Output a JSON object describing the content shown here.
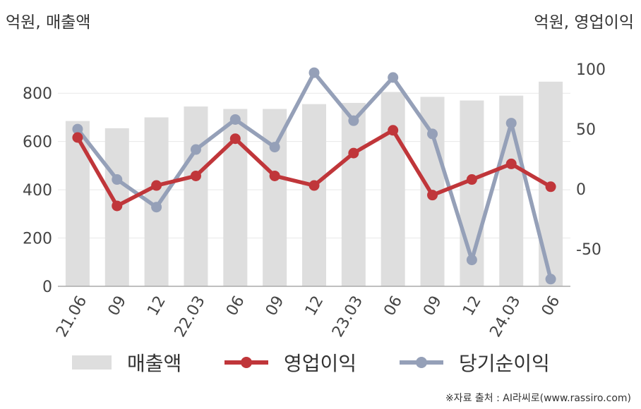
{
  "unit_left": "억원, 매출액",
  "unit_right": "억원, 영업이익",
  "source": "※자료 출처 : AI라씨로(www.rassiro.com)",
  "colors": {
    "bar": "#dedede",
    "op": "#c0363a",
    "net": "#95a0b8",
    "axis": "#aaaaaa",
    "grid": "#e8e8e8"
  },
  "legend": [
    {
      "label": "매출액",
      "kind": "bar",
      "color": "#dedede"
    },
    {
      "label": "영업이익",
      "kind": "line",
      "color": "#c0363a"
    },
    {
      "label": "당기순이익",
      "kind": "line",
      "color": "#95a0b8"
    }
  ],
  "chart_data": {
    "type": "bar+line",
    "categories": [
      "21.06",
      "09",
      "12",
      "22.03",
      "06",
      "09",
      "12",
      "23.03",
      "06",
      "09",
      "12",
      "24.03",
      "06"
    ],
    "left_axis": {
      "ylim": [
        0,
        900
      ],
      "ticks": [
        0,
        200,
        400,
        600,
        800
      ]
    },
    "right_axis": {
      "ylim": [
        -81,
        100
      ],
      "ticks": [
        -50,
        0,
        50,
        100
      ]
    },
    "series": [
      {
        "name": "매출액",
        "type": "bar",
        "axis": "left",
        "values": [
          685,
          655,
          700,
          745,
          735,
          735,
          755,
          760,
          805,
          785,
          770,
          790,
          848
        ]
      },
      {
        "name": "영업이익",
        "type": "line",
        "axis": "right",
        "values": [
          43,
          -14,
          3,
          11,
          42,
          11,
          3,
          30,
          49,
          -5,
          8,
          21,
          2
        ]
      },
      {
        "name": "당기순이익",
        "type": "line",
        "axis": "right",
        "values": [
          50,
          8,
          -15,
          33,
          58,
          35,
          97,
          57,
          93,
          46,
          -59,
          55,
          -75
        ]
      }
    ]
  }
}
